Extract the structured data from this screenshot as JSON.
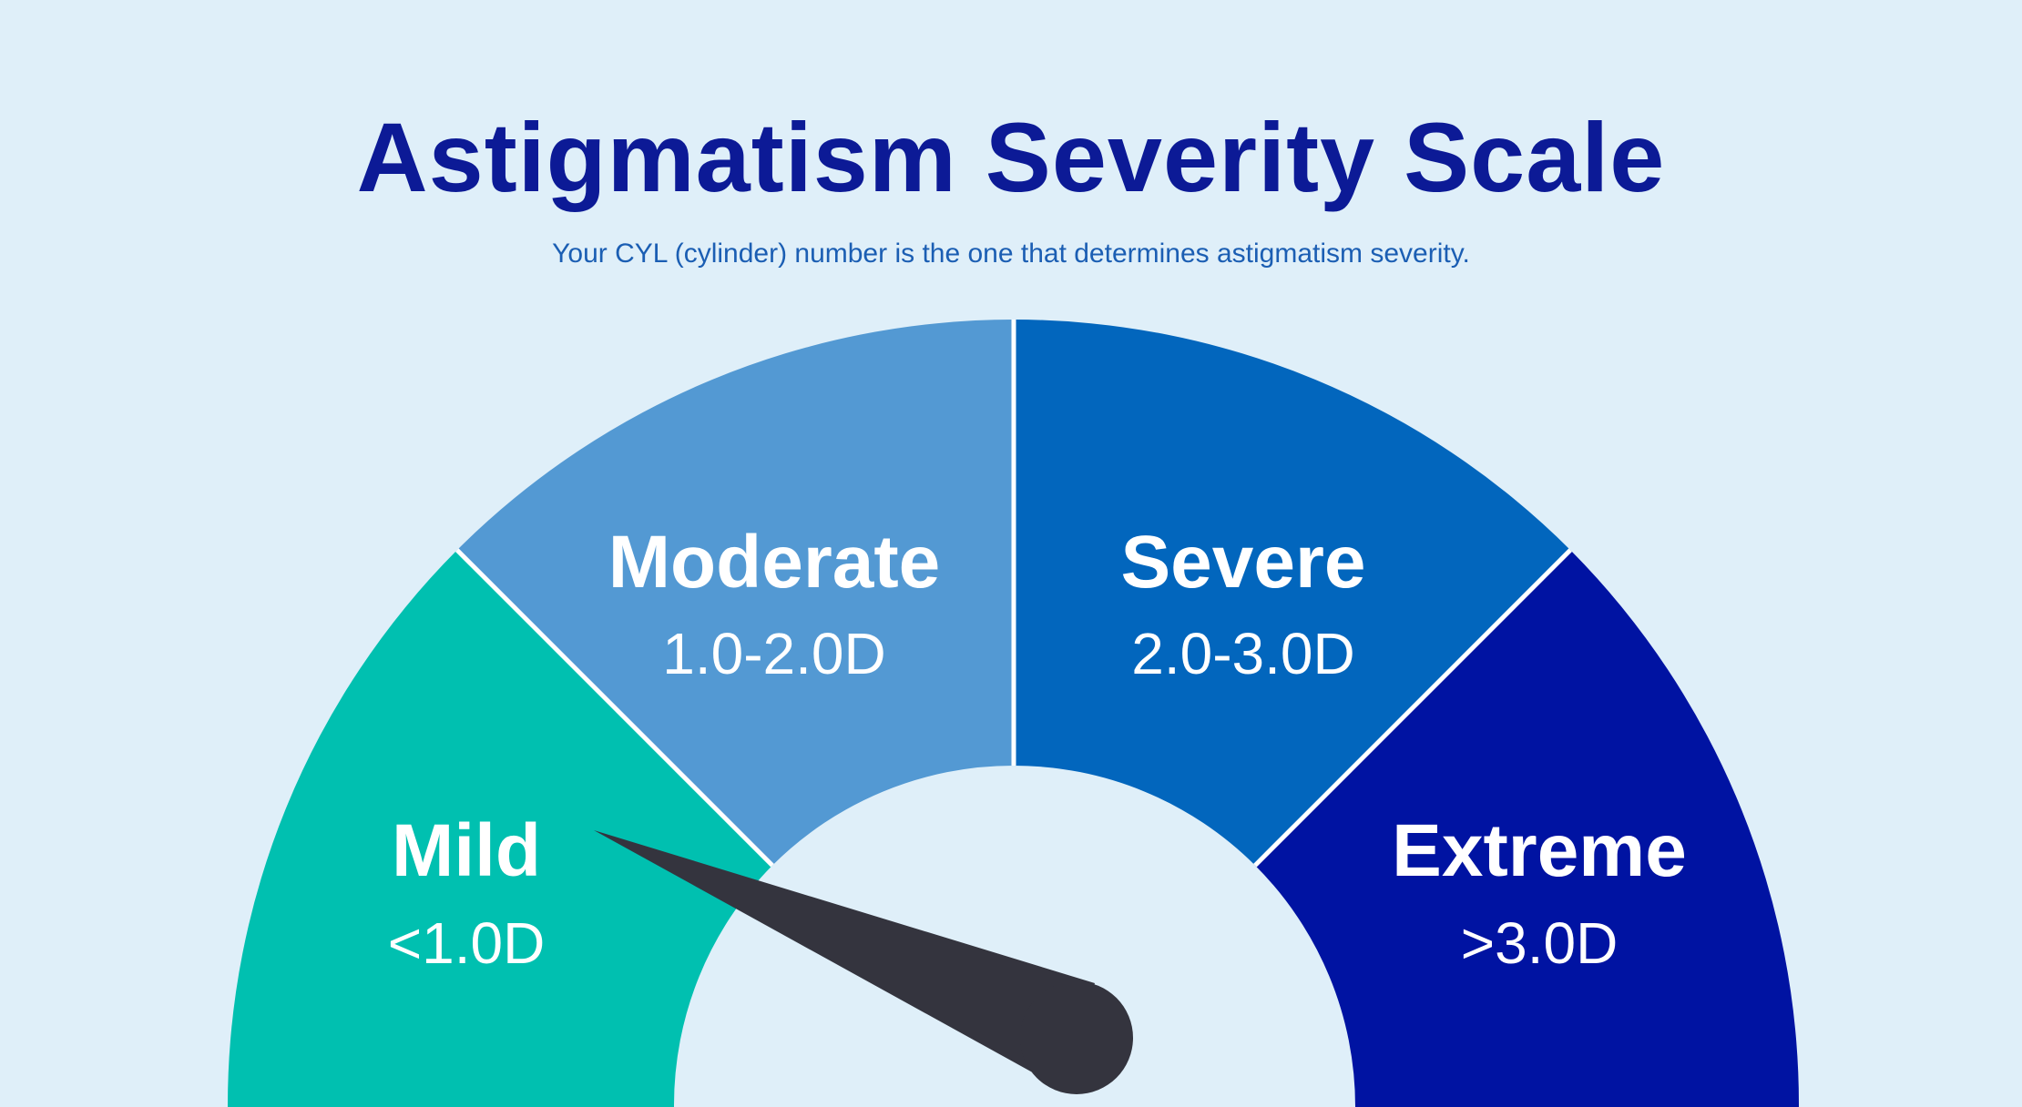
{
  "title": "Astigmatism Severity Scale",
  "subtitle": "Your CYL (cylinder) number is the one that determines astigmatism severity.",
  "segments": [
    {
      "name": "Mild",
      "range": "<1.0D",
      "color": "#00c0b0"
    },
    {
      "name": "Moderate",
      "range": "1.0-2.0D",
      "color": "#5399d3"
    },
    {
      "name": "Severe",
      "range": "2.0-3.0D",
      "color": "#0266bd"
    },
    {
      "name": "Extreme",
      "range": ">3.0D",
      "color": "#0013a2"
    }
  ],
  "needle": {
    "color": "#34343e"
  }
}
